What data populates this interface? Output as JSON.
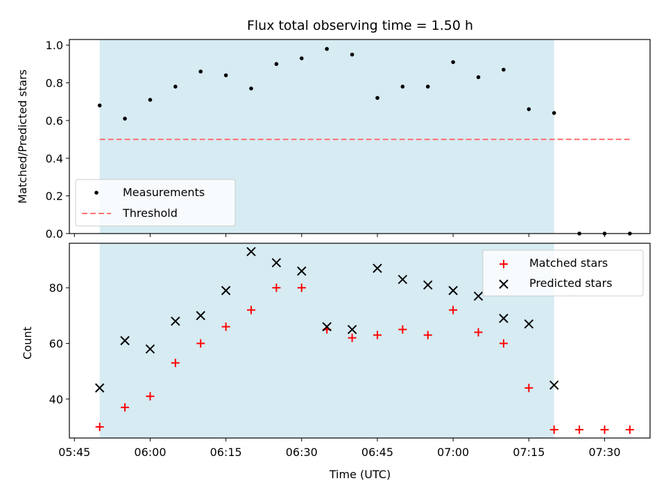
{
  "chart_data": {
    "title": "Flux total observing time = 1.50 h",
    "xlabel": "Time (UTC)",
    "x_ticks": [
      "05:45",
      "06:00",
      "06:15",
      "06:30",
      "06:45",
      "07:00",
      "07:15",
      "07:30"
    ],
    "x_tick_minutes": [
      345,
      360,
      375,
      390,
      405,
      420,
      435,
      450
    ],
    "xlim": [
      "05:44",
      "07:39"
    ],
    "observing_window": [
      "05:50",
      "07:20"
    ],
    "observing_window_color": "#add8e6",
    "panels": [
      {
        "type": "scatter",
        "ylabel": "Matched/Predicted stars",
        "ylim": [
          0,
          1.03
        ],
        "y_ticks": [
          "0.0",
          "0.2",
          "0.4",
          "0.6",
          "0.8",
          "1.0"
        ],
        "y_tick_values": [
          0,
          0.2,
          0.4,
          0.6,
          0.8,
          1.0
        ],
        "legend_position": "lower-left",
        "series": [
          {
            "name": "Measurements",
            "marker": "dot",
            "color": "#000000",
            "x": [
              "05:50",
              "05:55",
              "06:00",
              "06:05",
              "06:10",
              "06:15",
              "06:20",
              "06:25",
              "06:30",
              "06:35",
              "06:40",
              "06:45",
              "06:50",
              "06:55",
              "07:00",
              "07:05",
              "07:10",
              "07:15",
              "07:20",
              "07:25",
              "07:30",
              "07:35"
            ],
            "y": [
              0.68,
              0.61,
              0.71,
              0.78,
              0.86,
              0.84,
              0.77,
              0.9,
              0.93,
              0.98,
              0.95,
              0.72,
              0.78,
              0.78,
              0.91,
              0.83,
              0.87,
              0.66,
              0.64,
              0.0,
              0.0,
              0.0
            ]
          },
          {
            "name": "Threshold",
            "type": "line",
            "style": "dashed",
            "color": "#ff7070",
            "x": [
              "05:50",
              "07:35"
            ],
            "y": [
              0.5,
              0.5
            ]
          }
        ]
      },
      {
        "type": "scatter",
        "ylabel": "Count",
        "ylim": [
          26,
          96
        ],
        "y_ticks": [
          "40",
          "60",
          "80"
        ],
        "y_tick_values": [
          40,
          60,
          80
        ],
        "legend_position": "top-right",
        "series": [
          {
            "name": "Matched stars",
            "marker": "plus",
            "color": "#ff0000",
            "x": [
              "05:50",
              "05:55",
              "06:00",
              "06:05",
              "06:10",
              "06:15",
              "06:20",
              "06:25",
              "06:30",
              "06:35",
              "06:40",
              "06:45",
              "06:50",
              "06:55",
              "07:00",
              "07:05",
              "07:10",
              "07:15",
              "07:20",
              "07:25",
              "07:30",
              "07:35"
            ],
            "y": [
              30,
              37,
              41,
              53,
              60,
              66,
              72,
              80,
              80,
              65,
              62,
              63,
              65,
              63,
              72,
              64,
              60,
              44,
              29,
              29,
              29,
              29
            ]
          },
          {
            "name": "Predicted stars",
            "marker": "x",
            "color": "#000000",
            "x": [
              "05:50",
              "05:55",
              "06:00",
              "06:05",
              "06:10",
              "06:15",
              "06:20",
              "06:25",
              "06:30",
              "06:35",
              "06:40",
              "06:45",
              "06:50",
              "06:55",
              "07:00",
              "07:05",
              "07:10",
              "07:15",
              "07:20"
            ],
            "y": [
              44,
              61,
              58,
              68,
              70,
              79,
              93,
              89,
              86,
              66,
              65,
              87,
              83,
              81,
              79,
              77,
              69,
              67,
              45
            ]
          }
        ]
      }
    ]
  }
}
